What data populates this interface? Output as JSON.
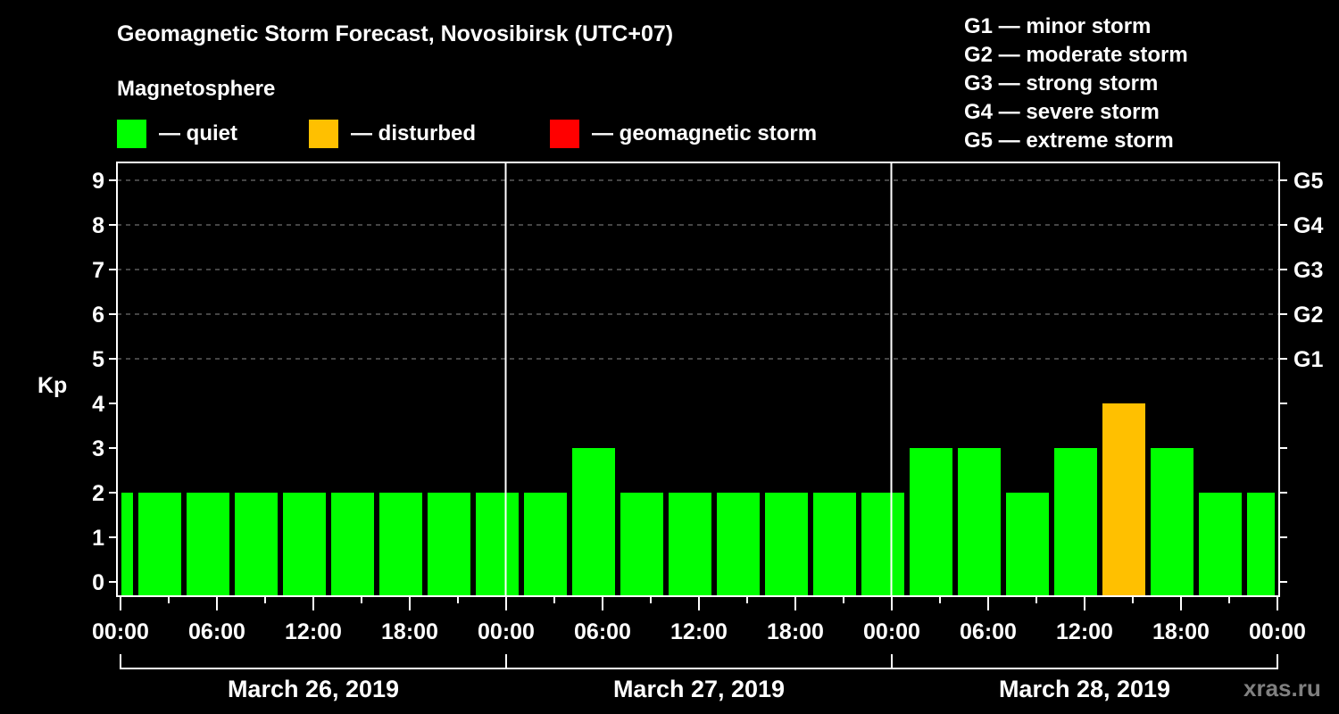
{
  "header": {
    "title": "Geomagnetic Storm Forecast, Novosibirsk (UTC+07)",
    "section_label": "Magnetosphere",
    "legend": [
      {
        "label": "— quiet",
        "color": "#00FF00"
      },
      {
        "label": "— disturbed",
        "color": "#FFC000"
      },
      {
        "label": "— geomagnetic storm",
        "color": "#FF0000"
      }
    ],
    "g_scale": [
      "G1 — minor storm",
      "G2 — moderate storm",
      "G3 — strong storm",
      "G4 — severe storm",
      "G5 — extreme storm"
    ]
  },
  "watermark": "xras.ru",
  "chart_data": {
    "type": "bar",
    "title": "Geomagnetic Storm Forecast, Novosibirsk (UTC+07)",
    "xlabel": "",
    "ylabel": "Kp",
    "ylim": [
      -0.3,
      9.6
    ],
    "yticks": [
      0,
      1,
      2,
      3,
      4,
      5,
      6,
      7,
      8,
      9
    ],
    "right_axis_labels": [
      {
        "kp": 5,
        "label": "G1"
      },
      {
        "kp": 6,
        "label": "G2"
      },
      {
        "kp": 7,
        "label": "G3"
      },
      {
        "kp": 8,
        "label": "G4"
      },
      {
        "kp": 9,
        "label": "G5"
      }
    ],
    "grid": {
      "horizontal_dashed_at": [
        5,
        6,
        7,
        8,
        9
      ]
    },
    "x_hours_range": [
      0,
      72
    ],
    "x_tick_labels": [
      {
        "hour": 0,
        "label": "00:00"
      },
      {
        "hour": 6,
        "label": "06:00"
      },
      {
        "hour": 12,
        "label": "12:00"
      },
      {
        "hour": 18,
        "label": "18:00"
      },
      {
        "hour": 24,
        "label": "00:00"
      },
      {
        "hour": 30,
        "label": "06:00"
      },
      {
        "hour": 36,
        "label": "12:00"
      },
      {
        "hour": 42,
        "label": "18:00"
      },
      {
        "hour": 48,
        "label": "00:00"
      },
      {
        "hour": 54,
        "label": "06:00"
      },
      {
        "hour": 60,
        "label": "12:00"
      },
      {
        "hour": 66,
        "label": "18:00"
      },
      {
        "hour": 72,
        "label": "00:00"
      }
    ],
    "days": [
      {
        "label": "March 26, 2019",
        "start_hour": 0,
        "end_hour": 24
      },
      {
        "label": "March 27, 2019",
        "start_hour": 24,
        "end_hour": 48
      },
      {
        "label": "March 28, 2019",
        "start_hour": 48,
        "end_hour": 72
      }
    ],
    "bar_period_hours": 3,
    "bar_start_offset_hours": -2,
    "categories": [
      "Mar 25 22:00",
      "Mar 26 01:00",
      "Mar 26 04:00",
      "Mar 26 07:00",
      "Mar 26 10:00",
      "Mar 26 13:00",
      "Mar 26 16:00",
      "Mar 26 19:00",
      "Mar 26 22:00",
      "Mar 27 01:00",
      "Mar 27 04:00",
      "Mar 27 07:00",
      "Mar 27 10:00",
      "Mar 27 13:00",
      "Mar 27 16:00",
      "Mar 27 19:00",
      "Mar 27 22:00",
      "Mar 28 01:00",
      "Mar 28 04:00",
      "Mar 28 07:00",
      "Mar 28 10:00",
      "Mar 28 13:00",
      "Mar 28 16:00",
      "Mar 28 19:00",
      "Mar 28 22:00"
    ],
    "values": [
      2,
      2,
      2,
      2,
      2,
      2,
      2,
      2,
      2,
      2,
      3,
      2,
      2,
      2,
      2,
      2,
      2,
      3,
      3,
      2,
      3,
      4,
      3,
      2,
      2
    ],
    "color_thresholds": {
      "quiet_max": 3,
      "disturbed_max": 4,
      "quiet": "#00FF00",
      "disturbed": "#FFC000",
      "storm": "#FF0000"
    }
  }
}
